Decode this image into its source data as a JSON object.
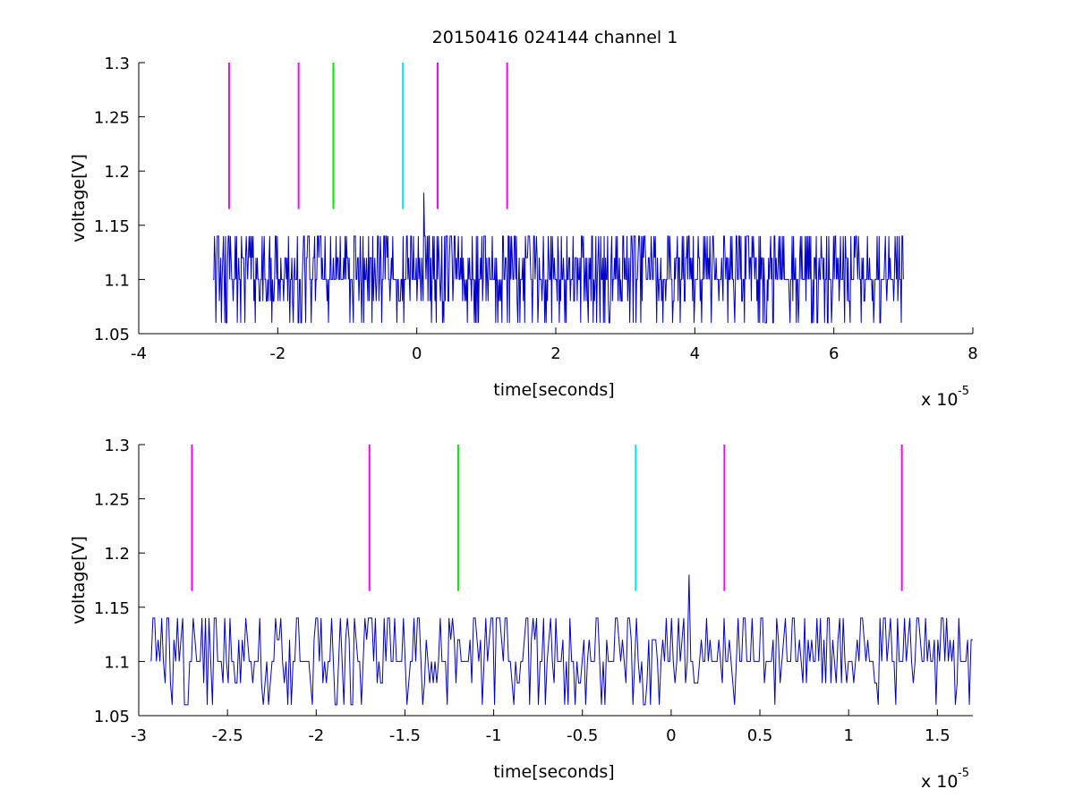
{
  "figure": {
    "title": "20150416 024144 channel 1"
  },
  "colors": {
    "trace": "#0000cc",
    "magenta": "#ff00ff",
    "green": "#00ee00",
    "cyan": "#00eeee",
    "axis": "#000000"
  },
  "chart_data": [
    {
      "type": "line",
      "title": "20150416 024144 channel 1",
      "xlabel": "time[seconds]",
      "ylabel": "voltage[V]",
      "x_exponent_label": "x 10",
      "x_exponent": "-5",
      "xlim": [
        -4,
        8
      ],
      "ylim": [
        1.05,
        1.3
      ],
      "xticks": [
        "-4",
        "-2",
        "0",
        "2",
        "4",
        "6",
        "8"
      ],
      "xtick_values": [
        -4,
        -2,
        0,
        2,
        4,
        6,
        8
      ],
      "yticks": [
        "1.05",
        "1.1",
        "1.15",
        "1.2",
        "1.25",
        "1.3"
      ],
      "ytick_values": [
        1.05,
        1.1,
        1.15,
        1.2,
        1.25,
        1.3
      ],
      "grid": false,
      "series": [
        {
          "color": "trace",
          "x_range": [
            -2.93,
            7.0
          ],
          "levels": [
            1.06,
            1.08,
            1.1,
            1.12,
            1.14
          ],
          "baseline": 1.1,
          "spike": {
            "x": 0.1,
            "y": 1.18
          }
        }
      ],
      "markers": [
        {
          "x": -2.7,
          "y0": 1.165,
          "y1": 1.3,
          "color": "magenta"
        },
        {
          "x": -1.7,
          "y0": 1.165,
          "y1": 1.3,
          "color": "magenta"
        },
        {
          "x": -1.2,
          "y0": 1.165,
          "y1": 1.3,
          "color": "green"
        },
        {
          "x": -0.2,
          "y0": 1.165,
          "y1": 1.3,
          "color": "cyan"
        },
        {
          "x": 0.3,
          "y0": 1.165,
          "y1": 1.3,
          "color": "magenta"
        },
        {
          "x": 1.3,
          "y0": 1.165,
          "y1": 1.3,
          "color": "magenta"
        }
      ]
    },
    {
      "type": "line",
      "title": "",
      "xlabel": "time[seconds]",
      "ylabel": "voltage[V]",
      "x_exponent_label": "x 10",
      "x_exponent": "-5",
      "xlim": [
        -3.0,
        1.7
      ],
      "ylim": [
        1.05,
        1.3
      ],
      "xticks": [
        "-3",
        "-2.5",
        "-2",
        "-1.5",
        "-1",
        "-0.5",
        "0",
        "0.5",
        "1",
        "1.5"
      ],
      "xtick_values": [
        -3,
        -2.5,
        -2,
        -1.5,
        -1,
        -0.5,
        0,
        0.5,
        1,
        1.5
      ],
      "yticks": [
        "1.05",
        "1.1",
        "1.15",
        "1.2",
        "1.25",
        "1.3"
      ],
      "ytick_values": [
        1.05,
        1.1,
        1.15,
        1.2,
        1.25,
        1.3
      ],
      "grid": false,
      "series": [
        {
          "color": "trace",
          "x_range": [
            -2.93,
            1.7
          ],
          "levels": [
            1.06,
            1.08,
            1.1,
            1.12,
            1.14
          ],
          "baseline": 1.1,
          "spike": {
            "x": 0.1,
            "y": 1.18
          }
        }
      ],
      "markers": [
        {
          "x": -2.7,
          "y0": 1.165,
          "y1": 1.3,
          "color": "magenta"
        },
        {
          "x": -1.7,
          "y0": 1.165,
          "y1": 1.3,
          "color": "magenta"
        },
        {
          "x": -1.2,
          "y0": 1.165,
          "y1": 1.3,
          "color": "green"
        },
        {
          "x": -0.2,
          "y0": 1.165,
          "y1": 1.3,
          "color": "cyan"
        },
        {
          "x": 0.3,
          "y0": 1.165,
          "y1": 1.3,
          "color": "magenta"
        },
        {
          "x": 1.3,
          "y0": 1.165,
          "y1": 1.3,
          "color": "magenta"
        }
      ]
    }
  ]
}
